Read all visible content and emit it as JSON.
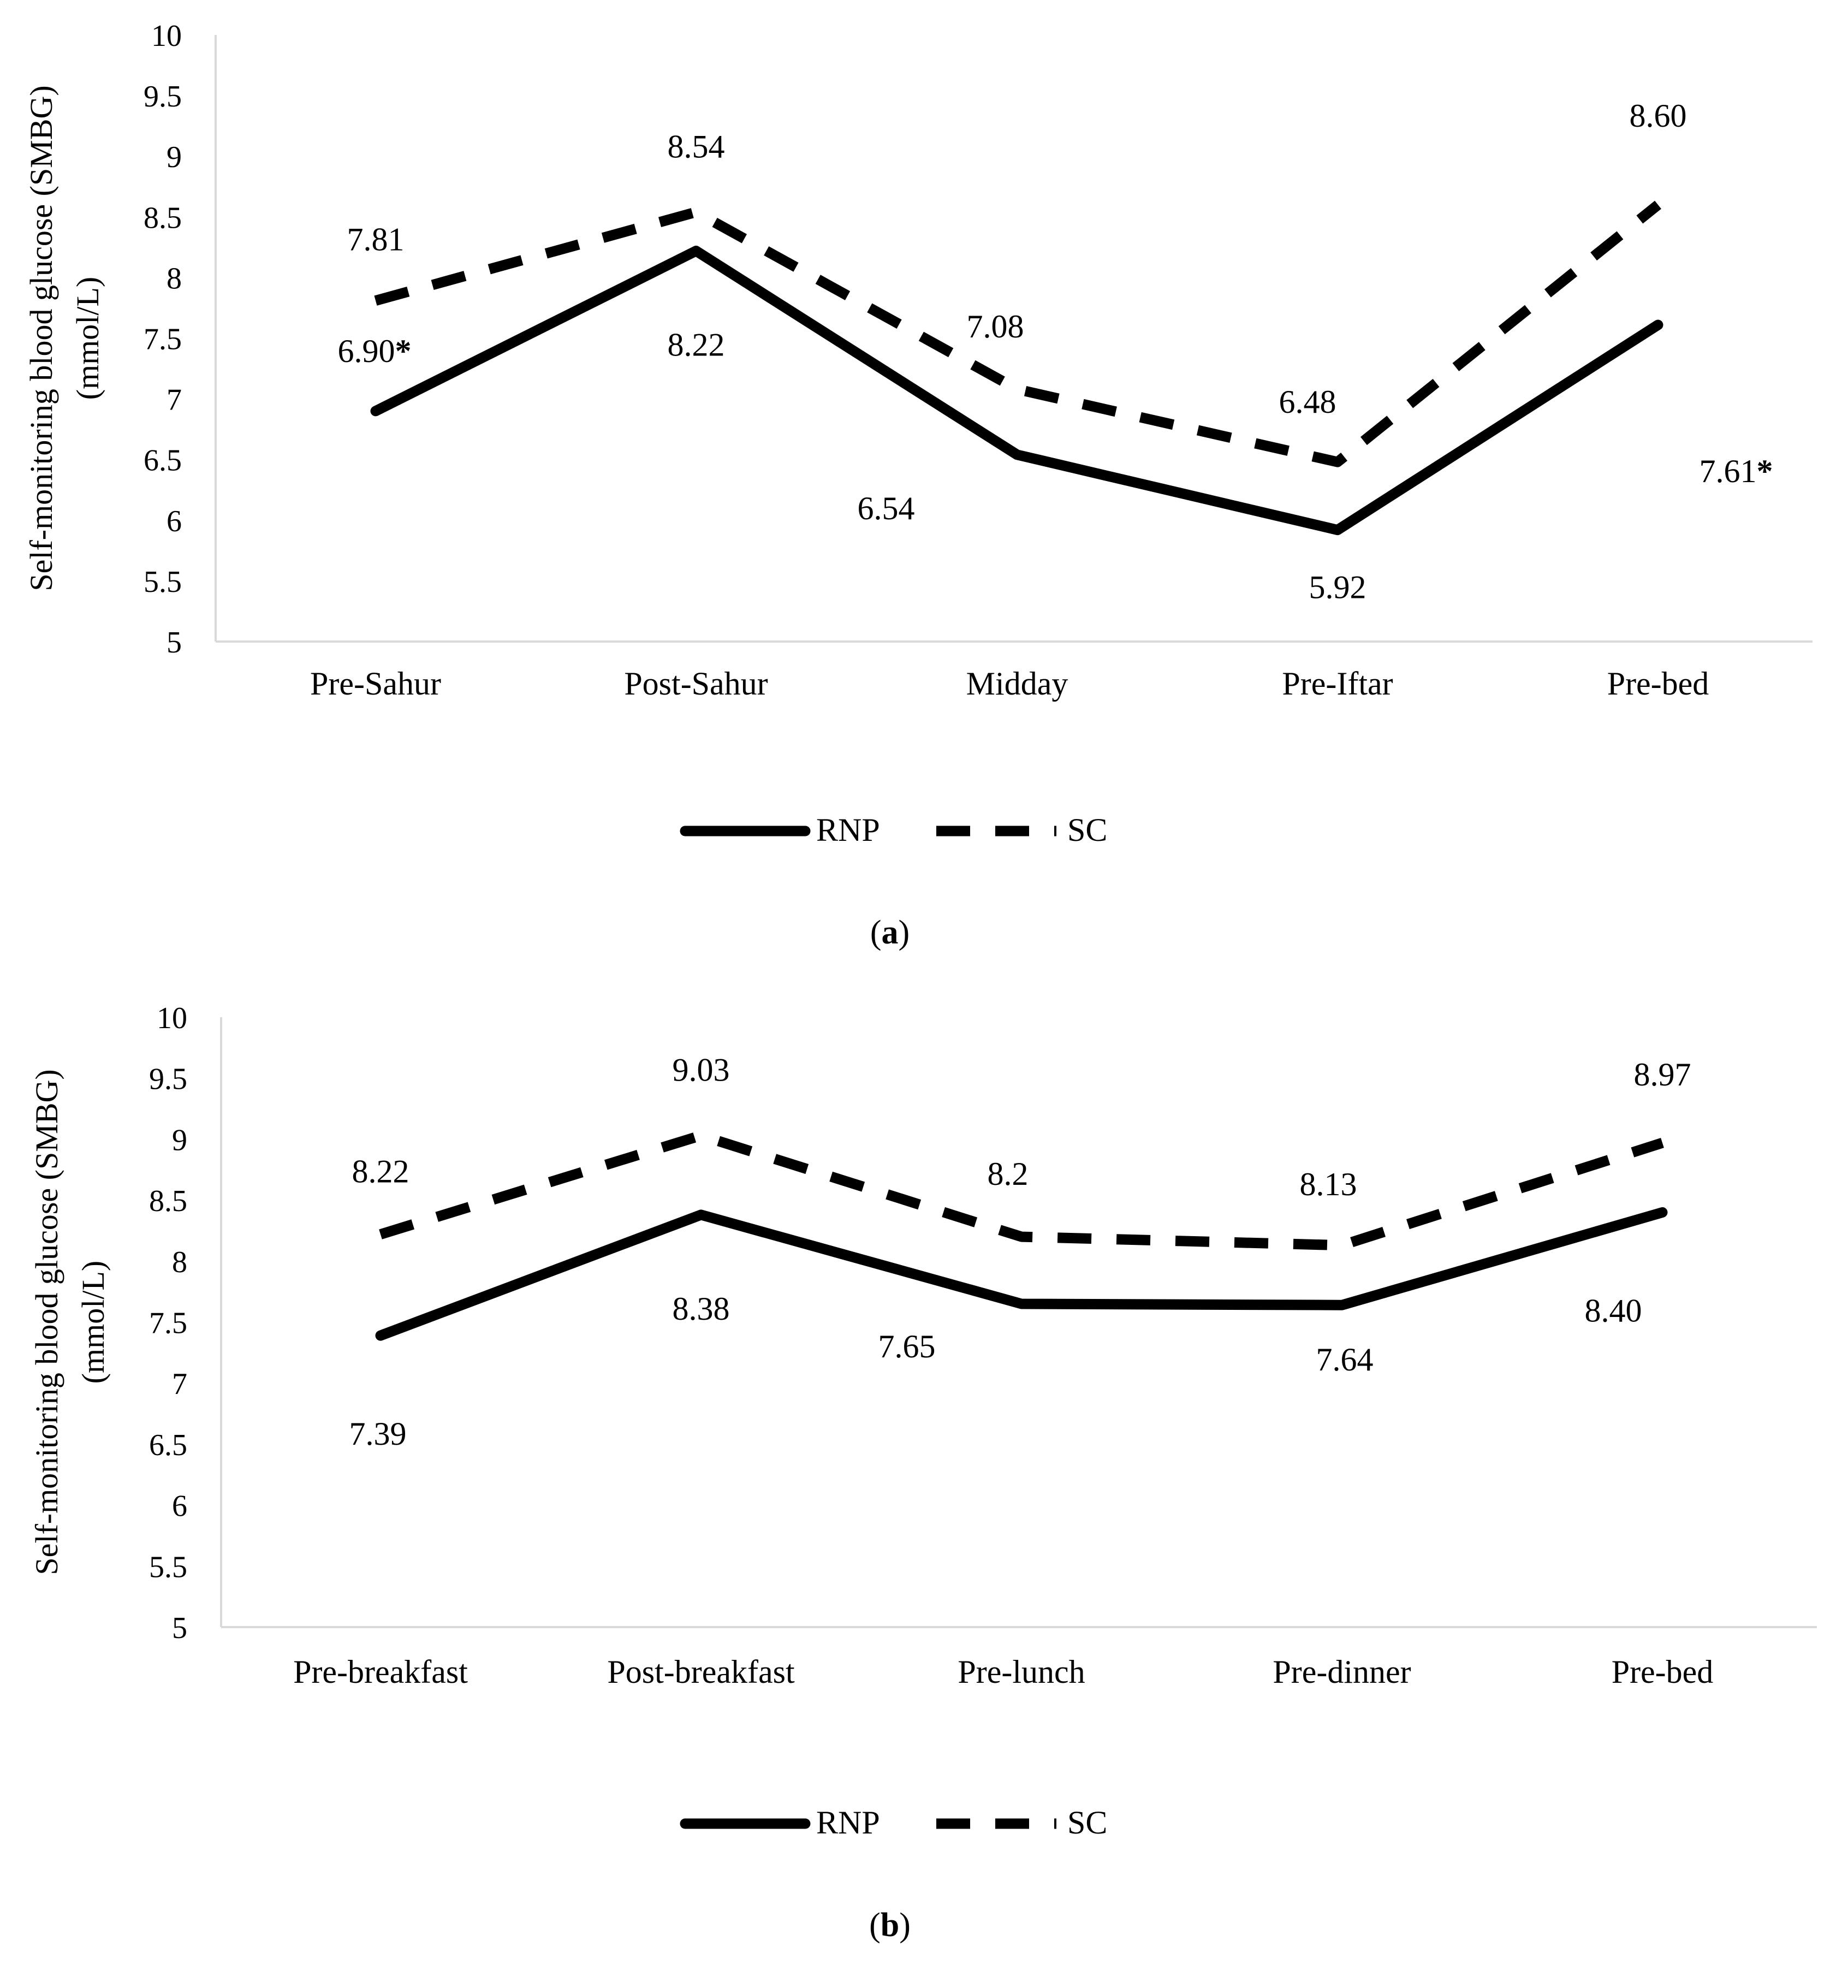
{
  "chart_data": [
    {
      "panel_label": "(a)",
      "type": "line",
      "categories": [
        "Pre-Sahur",
        "Post-Sahur",
        "Midday",
        "Pre-Iftar",
        "Pre-bed"
      ],
      "ylabel_line1": "Self-monitoring blood glucose (SMBG)",
      "ylabel_line2": "(mmol/L)",
      "ylim": [
        5,
        10
      ],
      "yticks": [
        "10",
        "9.5",
        "9",
        "8.5",
        "8",
        "7.5",
        "7",
        "6.5",
        "6",
        "5.5",
        "5"
      ],
      "grid": false,
      "legend_position": "bottom",
      "series": [
        {
          "name": "RNP",
          "style": "solid",
          "color": "#000000",
          "values": [
            6.9,
            8.22,
            6.54,
            5.92,
            7.61
          ],
          "labels": [
            "6.90",
            "8.22",
            "6.54",
            "5.92",
            "7.61"
          ],
          "significant": [
            true,
            false,
            false,
            false,
            true
          ]
        },
        {
          "name": "SC",
          "style": "dashed",
          "color": "#000000",
          "values": [
            7.81,
            8.54,
            7.08,
            6.48,
            8.6
          ],
          "labels": [
            "7.81",
            "8.54",
            "7.08",
            "6.48",
            "8.60"
          ],
          "significant": [
            false,
            false,
            false,
            false,
            false
          ]
        }
      ],
      "significance_marker": "*"
    },
    {
      "panel_label": "(b)",
      "type": "line",
      "categories": [
        "Pre-breakfast",
        "Post-breakfast",
        "Pre-lunch",
        "Pre-dinner",
        "Pre-bed"
      ],
      "ylabel_line1": "Self-monitoring blood glucose (SMBG)",
      "ylabel_line2": "(mmol/L)",
      "ylim": [
        5,
        10
      ],
      "yticks": [
        "10",
        "9.5",
        "9",
        "8.5",
        "8",
        "7.5",
        "7",
        "6.5",
        "6",
        "5.5",
        "5"
      ],
      "grid": false,
      "legend_position": "bottom",
      "series": [
        {
          "name": "RNP",
          "style": "solid",
          "color": "#000000",
          "values": [
            7.39,
            8.38,
            7.65,
            7.64,
            8.4
          ],
          "labels": [
            "7.39",
            "8.38",
            "7.65",
            "7.64",
            "8.40"
          ],
          "significant": [
            false,
            false,
            false,
            false,
            false
          ]
        },
        {
          "name": "SC",
          "style": "dashed",
          "color": "#000000",
          "values": [
            8.22,
            9.03,
            8.2,
            8.13,
            8.97
          ],
          "labels": [
            "8.22",
            "9.03",
            "8.2",
            "8.13",
            "8.97"
          ],
          "significant": [
            false,
            false,
            false,
            false,
            false
          ]
        }
      ],
      "significance_marker": "*"
    }
  ]
}
